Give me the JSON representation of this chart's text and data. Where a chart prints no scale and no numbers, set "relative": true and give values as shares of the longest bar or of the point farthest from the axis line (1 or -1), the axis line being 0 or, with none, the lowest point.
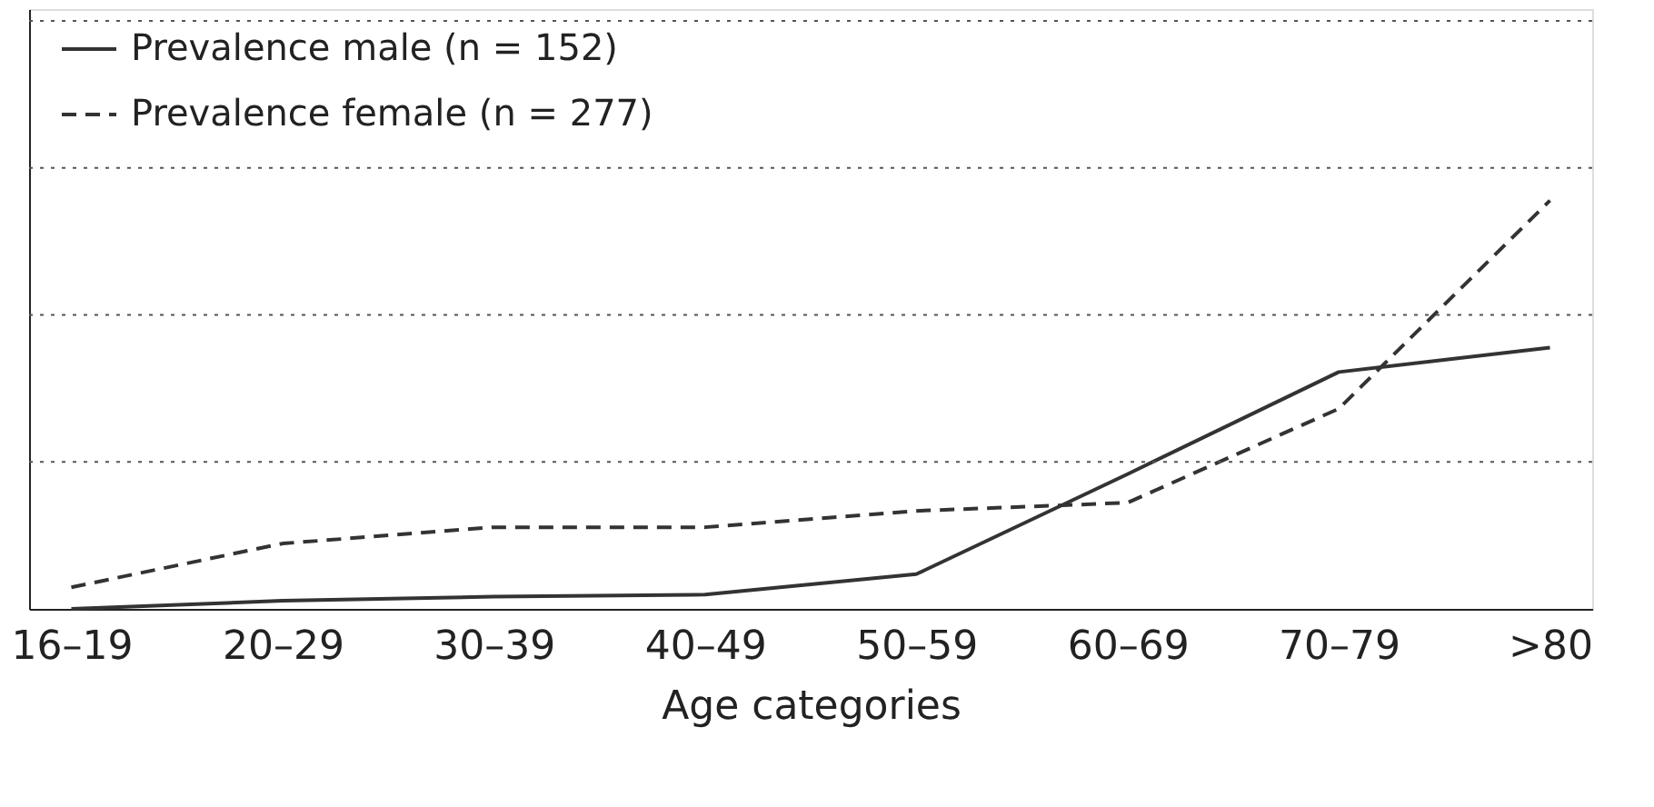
{
  "chart_data": {
    "type": "line",
    "relative": true,
    "xlabel": "Age categories",
    "categories": [
      "16–19",
      "20–29",
      "30–39",
      "40–49",
      "50–59",
      "60–69",
      "70–79",
      ">80"
    ],
    "series": [
      {
        "name": "Prevalence male (n = 152)",
        "color": "#333333",
        "line_style": "solid",
        "values": [
          0,
          0.02,
          0.03,
          0.035,
          0.085,
          0.33,
          0.58,
          0.64
        ]
      },
      {
        "name": "Prevalence female (n = 277)",
        "color": "#333333",
        "line_style": "dashed",
        "values": [
          0.053,
          0.16,
          0.2,
          0.2,
          0.24,
          0.26,
          0.49,
          1
        ]
      }
    ],
    "ref_lines": [
      {
        "axis": "y",
        "value": 0.36,
        "color": "#555555",
        "line_style": "dotted"
      },
      {
        "axis": "y",
        "value": 0.72,
        "color": "#555555",
        "line_style": "dotted"
      },
      {
        "axis": "y",
        "value": 1.08,
        "color": "#555555",
        "line_style": "dotted"
      },
      {
        "axis": "y",
        "value": 1.44,
        "color": "#555555",
        "line_style": "dotted"
      }
    ],
    "legend": "top left",
    "marker": "none"
  }
}
